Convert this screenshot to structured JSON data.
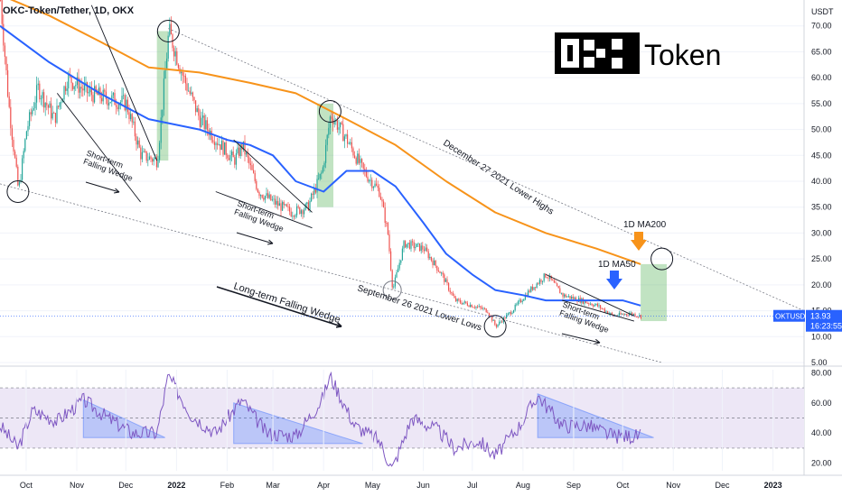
{
  "header": {
    "title": "OKC-Token/Tether, 1D, OKX"
  },
  "logo": {
    "text": "Token"
  },
  "price_axis": {
    "unit": "USDT",
    "ticks": [
      "70.00",
      "65.00",
      "60.00",
      "55.00",
      "50.00",
      "45.00",
      "40.00",
      "35.00",
      "30.00",
      "25.00",
      "20.00",
      "15.00",
      "10.00",
      "5.00"
    ],
    "last_price": {
      "symbol": "OKTUSDT",
      "value": "13.93",
      "countdown": "16:23:55"
    }
  },
  "rsi_axis": {
    "ticks": [
      "80.00",
      "60.00",
      "40.00",
      "20.00"
    ]
  },
  "time_axis": {
    "labels": [
      "Oct",
      "Nov",
      "Dec",
      "2022",
      "Feb",
      "Mar",
      "Apr",
      "May",
      "Jun",
      "Jul",
      "Aug",
      "Sep",
      "Oct",
      "Nov",
      "Dec",
      "2023"
    ]
  },
  "annotations": {
    "upper_trendline": "December 27 2021 Lower Highs",
    "lower_trendline": "September 26 2021 Lower Lows",
    "long_term": "Long-term Falling Wedge",
    "wedge_1": "Short-term\nFalling Wedge",
    "wedge_2": "Short-term\nFalling Wedge",
    "wedge_3": "Short-term\nFalling Wedge",
    "ma200": "1D MA200",
    "ma50": "1D MA50"
  },
  "colors": {
    "ma50": "#2962ff",
    "ma200": "#f7931a",
    "green_box": "#4caf50",
    "rsi_line": "#7e57c2",
    "rsi_band": "#ede7f6",
    "up": "#26a69a",
    "down": "#ef5350",
    "last_price_bg": "#2962ff"
  },
  "chart_data": {
    "type": "candlestick",
    "ylabel": "USDT",
    "ylim": [
      5,
      75
    ],
    "x_range": [
      "2021-09-15",
      "2023-01-20"
    ],
    "price_path": [
      [
        "2021-09-15",
        75
      ],
      [
        "2021-09-20",
        55
      ],
      [
        "2021-09-26",
        38
      ],
      [
        "2021-10-01",
        50
      ],
      [
        "2021-10-08",
        58
      ],
      [
        "2021-10-18",
        52
      ],
      [
        "2021-10-26",
        60
      ],
      [
        "2021-11-08",
        57
      ],
      [
        "2021-11-20",
        56
      ],
      [
        "2021-12-01",
        55
      ],
      [
        "2021-12-10",
        45
      ],
      [
        "2021-12-20",
        44
      ],
      [
        "2021-12-27",
        69
      ],
      [
        "2022-01-05",
        60
      ],
      [
        "2022-01-15",
        52
      ],
      [
        "2022-01-25",
        48
      ],
      [
        "2022-02-05",
        44
      ],
      [
        "2022-02-10",
        47
      ],
      [
        "2022-02-20",
        38
      ],
      [
        "2022-03-01",
        36
      ],
      [
        "2022-03-12",
        34
      ],
      [
        "2022-03-22",
        35
      ],
      [
        "2022-03-31",
        42
      ],
      [
        "2022-04-05",
        53
      ],
      [
        "2022-04-15",
        48
      ],
      [
        "2022-04-25",
        42
      ],
      [
        "2022-05-05",
        38
      ],
      [
        "2022-05-10",
        30
      ],
      [
        "2022-05-13",
        19
      ],
      [
        "2022-05-20",
        28
      ],
      [
        "2022-06-01",
        27
      ],
      [
        "2022-06-12",
        22
      ],
      [
        "2022-06-20",
        17
      ],
      [
        "2022-07-01",
        16
      ],
      [
        "2022-07-10",
        15
      ],
      [
        "2022-07-15",
        12
      ],
      [
        "2022-07-25",
        15
      ],
      [
        "2022-08-05",
        19
      ],
      [
        "2022-08-15",
        22
      ],
      [
        "2022-08-25",
        18
      ],
      [
        "2022-09-05",
        17
      ],
      [
        "2022-09-15",
        16
      ],
      [
        "2022-09-25",
        14
      ],
      [
        "2022-10-05",
        14.5
      ],
      [
        "2022-10-12",
        13.93
      ]
    ],
    "series": [
      {
        "name": "1D MA50",
        "values": [
          [
            "2021-09-15",
            70
          ],
          [
            "2021-10-15",
            63
          ],
          [
            "2021-11-15",
            57
          ],
          [
            "2021-12-15",
            52
          ],
          [
            "2022-01-15",
            50
          ],
          [
            "2022-02-01",
            48
          ],
          [
            "2022-02-15",
            47
          ],
          [
            "2022-03-01",
            45
          ],
          [
            "2022-03-15",
            40
          ],
          [
            "2022-04-01",
            38
          ],
          [
            "2022-04-15",
            42
          ],
          [
            "2022-05-01",
            42
          ],
          [
            "2022-05-15",
            39
          ],
          [
            "2022-06-01",
            32
          ],
          [
            "2022-06-15",
            26
          ],
          [
            "2022-07-01",
            22
          ],
          [
            "2022-07-15",
            19
          ],
          [
            "2022-08-01",
            18
          ],
          [
            "2022-08-15",
            17
          ],
          [
            "2022-09-01",
            17
          ],
          [
            "2022-09-15",
            17
          ],
          [
            "2022-10-01",
            17
          ],
          [
            "2022-10-12",
            16
          ]
        ]
      },
      {
        "name": "1D MA200",
        "values": [
          [
            "2021-09-15",
            76
          ],
          [
            "2021-10-15",
            72
          ],
          [
            "2021-11-15",
            67
          ],
          [
            "2021-12-15",
            62
          ],
          [
            "2022-01-15",
            61
          ],
          [
            "2022-02-15",
            59
          ],
          [
            "2022-03-15",
            57
          ],
          [
            "2022-04-15",
            52
          ],
          [
            "2022-05-15",
            47
          ],
          [
            "2022-06-15",
            40
          ],
          [
            "2022-07-15",
            34
          ],
          [
            "2022-08-15",
            30
          ],
          [
            "2022-09-15",
            27
          ],
          [
            "2022-10-12",
            24
          ]
        ]
      }
    ],
    "rsi": {
      "ylim": [
        15,
        82
      ],
      "levels": [
        70,
        50,
        30
      ],
      "values": [
        [
          "2021-09-15",
          45
        ],
        [
          "2021-09-26",
          30
        ],
        [
          "2021-10-05",
          55
        ],
        [
          "2021-10-20",
          48
        ],
        [
          "2021-11-05",
          62
        ],
        [
          "2021-11-20",
          50
        ],
        [
          "2021-12-05",
          40
        ],
        [
          "2021-12-20",
          40
        ],
        [
          "2021-12-27",
          78
        ],
        [
          "2022-01-10",
          52
        ],
        [
          "2022-01-25",
          40
        ],
        [
          "2022-02-10",
          62
        ],
        [
          "2022-02-25",
          40
        ],
        [
          "2022-03-15",
          38
        ],
        [
          "2022-03-31",
          62
        ],
        [
          "2022-04-05",
          78
        ],
        [
          "2022-04-20",
          45
        ],
        [
          "2022-05-05",
          35
        ],
        [
          "2022-05-13",
          16
        ],
        [
          "2022-05-25",
          50
        ],
        [
          "2022-06-10",
          42
        ],
        [
          "2022-06-20",
          30
        ],
        [
          "2022-07-05",
          35
        ],
        [
          "2022-07-15",
          25
        ],
        [
          "2022-07-30",
          45
        ],
        [
          "2022-08-10",
          65
        ],
        [
          "2022-08-25",
          45
        ],
        [
          "2022-09-10",
          45
        ],
        [
          "2022-09-25",
          38
        ],
        [
          "2022-10-12",
          38
        ]
      ]
    }
  }
}
